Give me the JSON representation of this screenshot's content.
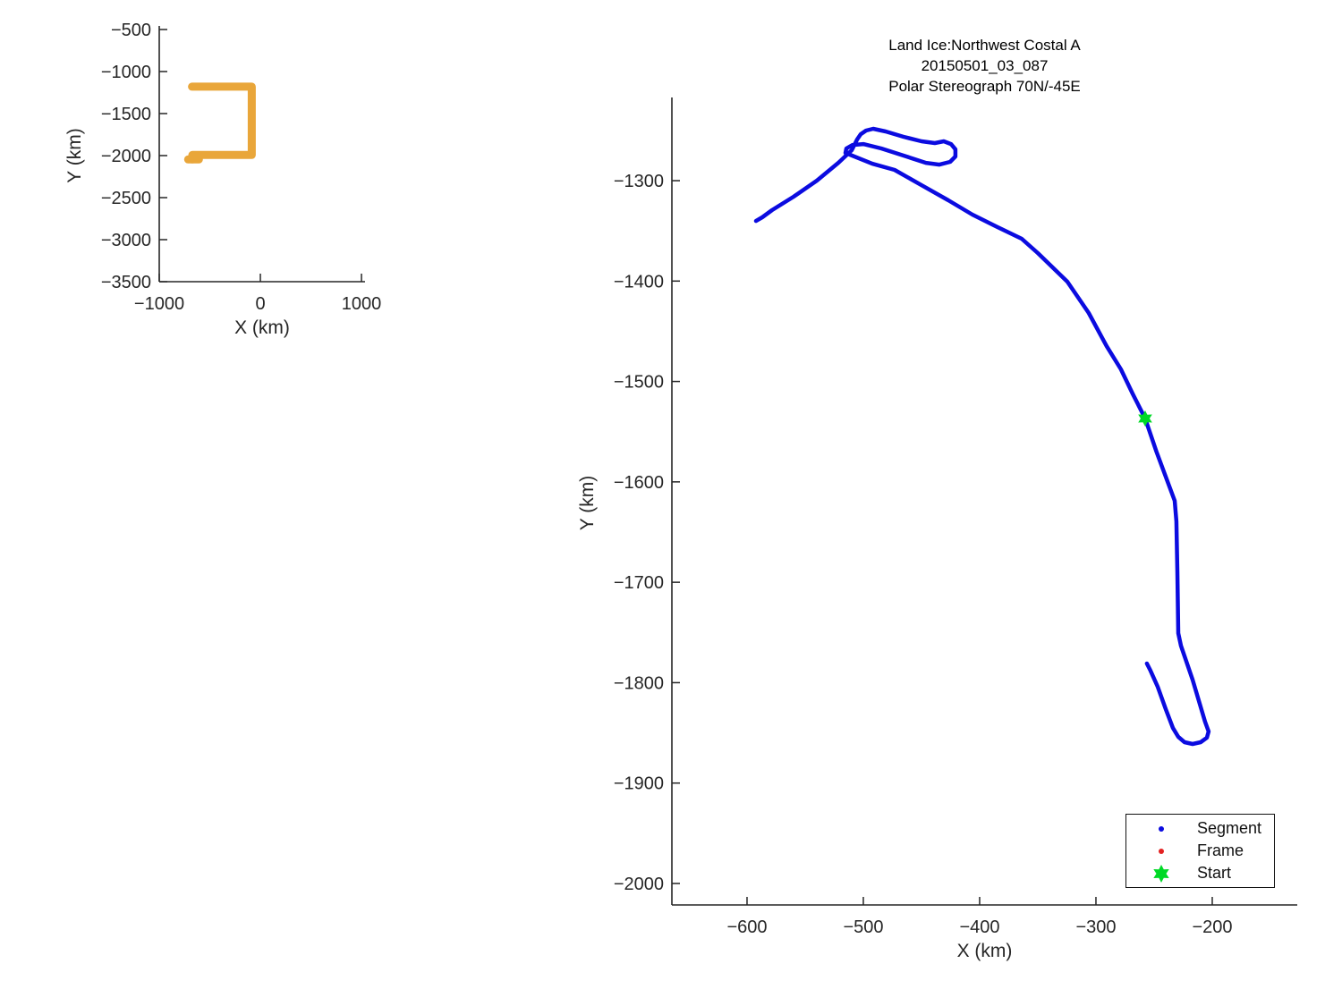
{
  "style": {
    "background": "#ffffff",
    "axis_color": "#262626",
    "tick_text_color": "#262626",
    "title_color": "#000000",
    "track_blue": "#0b0be0",
    "box_orange": "#e9a63a",
    "start_green": "#00d926",
    "frame_red": "#e32222"
  },
  "chart_data": [
    {
      "id": "overview-inset",
      "type": "line",
      "title": "",
      "xlabel": "X (km)",
      "ylabel": "Y (km)",
      "xlim": [
        -1000,
        1035
      ],
      "ylim": [
        -3500,
        -500
      ],
      "xticks": [
        -1000,
        0,
        1000
      ],
      "yticks": [
        -500,
        -1000,
        -1500,
        -2000,
        -2500,
        -3000,
        -3500
      ],
      "grid": false,
      "series": [
        {
          "name": "coverage-box",
          "color": "#e9a63a",
          "width": 9,
          "points": [
            [
              -676,
              -1180
            ],
            [
              -85,
              -1180
            ],
            [
              -85,
              -1993
            ],
            [
              -673,
              -1993
            ],
            [
              -673,
              -2046
            ]
          ]
        },
        {
          "name": "coverage-box-tail",
          "color": "#e9a63a",
          "width": 9,
          "points": [
            [
              -714,
              -2046
            ],
            [
              -608,
              -2046
            ]
          ]
        }
      ]
    },
    {
      "id": "track-plot",
      "type": "line",
      "title_lines": [
        "Land Ice:Northwest Costal A",
        "20150501_03_087",
        "Polar Stereograph 70N/-45E"
      ],
      "xlabel": "X (km)",
      "ylabel": "Y (km)",
      "xlim": [
        -664.6,
        -126.9
      ],
      "ylim": [
        -2021.4,
        -1220.7
      ],
      "xticks": [
        -600,
        -500,
        -400,
        -300,
        -200
      ],
      "yticks": [
        -1300,
        -1400,
        -1500,
        -1600,
        -1700,
        -1800,
        -1900,
        -2000
      ],
      "grid": false,
      "series": [
        {
          "name": "segment-track",
          "color": "#0b0be0",
          "width": 4.5,
          "points": [
            [
              -592.3,
              -1340.1
            ],
            [
              -586.9,
              -1336.5
            ],
            [
              -578.5,
              -1329.4
            ],
            [
              -560,
              -1316
            ],
            [
              -540,
              -1300
            ],
            [
              -521.5,
              -1282.2
            ],
            [
              -510,
              -1269.7
            ],
            [
              -505.4,
              -1259
            ],
            [
              -502.3,
              -1253.7
            ],
            [
              -497.7,
              -1250.1
            ],
            [
              -491.5,
              -1248.3
            ],
            [
              -480.8,
              -1251
            ],
            [
              -465.4,
              -1256.3
            ],
            [
              -450,
              -1260.8
            ],
            [
              -438.5,
              -1262.6
            ],
            [
              -430.8,
              -1260.8
            ],
            [
              -424.6,
              -1263.5
            ],
            [
              -420.8,
              -1268.8
            ],
            [
              -420.8,
              -1275.9
            ],
            [
              -425.4,
              -1281.3
            ],
            [
              -434.6,
              -1284
            ],
            [
              -446.2,
              -1282.2
            ],
            [
              -465.4,
              -1275
            ],
            [
              -484.6,
              -1267.9
            ],
            [
              -500,
              -1263.5
            ],
            [
              -509.2,
              -1264.4
            ],
            [
              -514.6,
              -1268
            ],
            [
              -515.4,
              -1272.4
            ],
            [
              -492.3,
              -1283.1
            ],
            [
              -473.1,
              -1289.3
            ],
            [
              -450,
              -1304.5
            ],
            [
              -426.9,
              -1319.6
            ],
            [
              -406.2,
              -1333.8
            ],
            [
              -384.6,
              -1346.3
            ],
            [
              -363.8,
              -1357.9
            ],
            [
              -350,
              -1372.1
            ],
            [
              -324.6,
              -1400.6
            ],
            [
              -306.2,
              -1431.8
            ],
            [
              -290.8,
              -1464.8
            ],
            [
              -278.5,
              -1487.9
            ],
            [
              -268.5,
              -1512
            ],
            [
              -257.7,
              -1536.9
            ],
            [
              -248,
              -1569.9
            ],
            [
              -238,
              -1601.1
            ],
            [
              -232.3,
              -1618.8
            ],
            [
              -230.8,
              -1639.3
            ],
            [
              -230,
              -1690.1
            ],
            [
              -229.2,
              -1750.7
            ],
            [
              -226.9,
              -1763.2
            ],
            [
              -216.9,
              -1797
            ],
            [
              -206.2,
              -1838.8
            ],
            [
              -203.1,
              -1848.6
            ],
            [
              -204.6,
              -1854.8
            ],
            [
              -210,
              -1859.3
            ],
            [
              -216.9,
              -1861.1
            ],
            [
              -223.8,
              -1859.3
            ],
            [
              -229.2,
              -1854
            ],
            [
              -233.8,
              -1845.1
            ],
            [
              -240,
              -1826.4
            ],
            [
              -246.9,
              -1804.1
            ],
            [
              -253.1,
              -1788
            ],
            [
              -256.2,
              -1780.9
            ]
          ]
        }
      ],
      "markers": [
        {
          "name": "start-marker",
          "marker": "hexagram",
          "color": "#00d926",
          "x": -257.7,
          "y": -1536.9,
          "size": 9
        }
      ],
      "legend": {
        "position": "bottom-right",
        "items": [
          {
            "label": "Segment",
            "marker": "dot",
            "color": "#0b0be0"
          },
          {
            "label": "Frame",
            "marker": "dot",
            "color": "#e32222"
          },
          {
            "label": "Start",
            "marker": "hexagram",
            "color": "#00d926"
          }
        ]
      }
    }
  ]
}
